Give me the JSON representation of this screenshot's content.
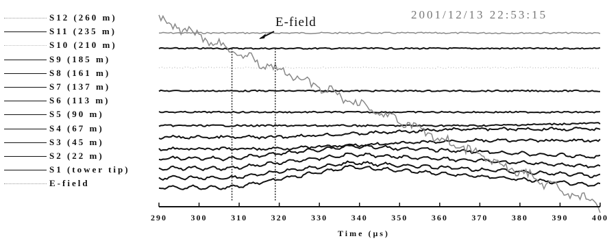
{
  "timestamp": "2001/12/13 22:53:15",
  "annotation": "E-field",
  "chart_data": {
    "type": "line",
    "xlabel": "Time (μs)",
    "xlim": [
      290,
      400
    ],
    "x_ticks": [
      290,
      300,
      310,
      320,
      330,
      340,
      350,
      360,
      370,
      380,
      390,
      400
    ],
    "markers": [
      308.2,
      319.0
    ],
    "legend_position": "left",
    "series": [
      {
        "name": "S12 (260 m)",
        "style": "dotted-gray",
        "baseline": 0.1,
        "shape": "flat"
      },
      {
        "name": "S11 (235 m)",
        "style": "solid",
        "baseline": 0.18,
        "shape": "flat"
      },
      {
        "name": "S10 (210 m)",
        "style": "dotted-faint",
        "baseline": 0.28,
        "shape": "flat"
      },
      {
        "name": "S9 (185 m)",
        "style": "solid",
        "baseline": 0.4,
        "shape": "flat"
      },
      {
        "name": "S8 (161 m)",
        "style": "solid",
        "baseline": 0.51,
        "shape": "flat"
      },
      {
        "name": "S7 (137 m)",
        "style": "solid",
        "baseline": 0.58,
        "shape": "ramp-small"
      },
      {
        "name": "S6 (113 m)",
        "style": "solid",
        "baseline": 0.64,
        "shape": "ramp"
      },
      {
        "name": "S5 (90 m)",
        "style": "solid",
        "baseline": 0.7,
        "shape": "ramp"
      },
      {
        "name": "S4 (67 m)",
        "style": "solid",
        "baseline": 0.75,
        "shape": "hump"
      },
      {
        "name": "S3 (45 m)",
        "style": "solid",
        "baseline": 0.8,
        "shape": "hump"
      },
      {
        "name": "S2 (22 m)",
        "style": "solid",
        "baseline": 0.85,
        "shape": "hump"
      },
      {
        "name": "S1 (tower tip)",
        "style": "solid",
        "baseline": 0.9,
        "shape": "hump-big"
      },
      {
        "name": "E-field",
        "style": "dotted-gray",
        "baseline": 0.05,
        "shape": "decline"
      }
    ]
  }
}
